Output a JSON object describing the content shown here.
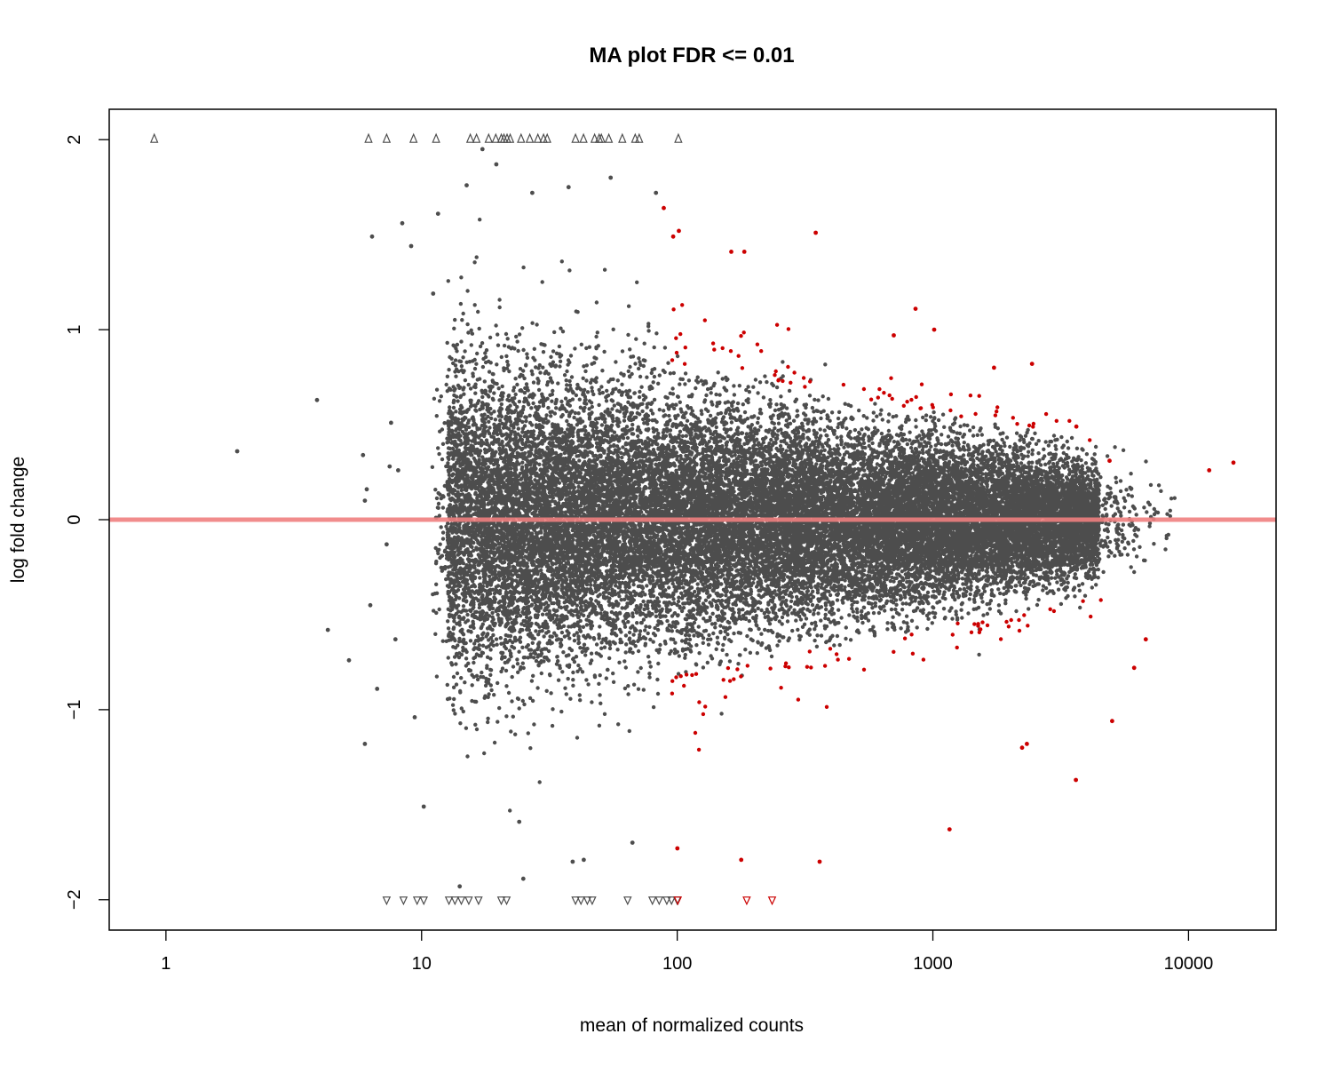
{
  "chart_data": {
    "type": "scatter",
    "title": "MA plot FDR <= 0.01",
    "xlabel": "mean of normalized counts",
    "ylabel": "log fold change",
    "x_scale": "log",
    "xlim": [
      0.6,
      22000
    ],
    "ylim": [
      -2.16,
      2.16
    ],
    "x_ticks": [
      1,
      10,
      100,
      1000,
      10000
    ],
    "x_tick_labels": [
      "1",
      "10",
      "100",
      "1000",
      "10000"
    ],
    "y_ticks": [
      -2,
      -1,
      0,
      1,
      2
    ],
    "y_tick_labels": [
      "−2",
      "−1",
      "0",
      "1",
      "2"
    ],
    "reference_line": {
      "y": 0
    },
    "grid": false,
    "legend": "none",
    "colors": {
      "not_significant": "#4d4d4d",
      "significant": "#cc0000",
      "reference_line": "#f08080",
      "frame": "#000000"
    },
    "clipped_markers": {
      "top_y": 2,
      "bottom_y": -2,
      "top_not_significant_x": [
        0.9,
        6.2,
        7.3,
        9.3,
        11.4,
        15.5,
        16.4,
        18.3,
        19.5,
        20.5,
        21,
        21.6,
        22.2,
        24.5,
        26.5,
        28.5,
        30,
        31,
        40,
        43,
        47.5,
        49.5,
        50.5,
        54,
        61,
        68.5,
        71,
        101
      ],
      "bottom_not_significant_x": [
        7.3,
        8.5,
        9.6,
        10.2,
        12.8,
        13.5,
        14.3,
        15.3,
        16.7,
        20.5,
        21.5,
        40,
        42,
        44.5,
        46.5,
        64,
        80,
        85,
        91,
        95,
        100
      ],
      "bottom_significant_x": [
        100.5,
        187,
        235
      ]
    },
    "series": [
      {
        "name": "",
        "color": "#4d4d4d",
        "points": [
          [
            3.9,
            0.63
          ],
          [
            1.9,
            0.36
          ],
          [
            4.3,
            -0.58
          ],
          [
            5.2,
            -0.74
          ],
          [
            6.0,
            -1.18
          ],
          [
            6.1,
            0.16
          ],
          [
            6.0,
            0.1
          ],
          [
            5.9,
            0.34
          ],
          [
            6.3,
            -0.45
          ],
          [
            6.4,
            1.49
          ],
          [
            6.7,
            -0.89
          ],
          [
            7.3,
            -0.13
          ],
          [
            7.5,
            0.28
          ],
          [
            7.6,
            0.51
          ],
          [
            7.9,
            -0.63
          ],
          [
            8.1,
            0.26
          ],
          [
            8.4,
            1.56
          ],
          [
            9.1,
            1.44
          ],
          [
            9.4,
            -1.04
          ],
          [
            10.2,
            -1.51
          ],
          [
            11.1,
            1.19
          ],
          [
            11.6,
            1.61
          ],
          [
            15.0,
            1.76
          ],
          [
            17.3,
            1.95
          ],
          [
            19.6,
            1.87
          ],
          [
            27.1,
            1.72
          ],
          [
            37.6,
            1.75
          ],
          [
            54.9,
            1.8
          ],
          [
            82.6,
            1.72
          ],
          [
            24.1,
            -1.59
          ],
          [
            39.0,
            -1.8
          ],
          [
            14.1,
            -1.93
          ],
          [
            25.0,
            -1.89
          ],
          [
            43.1,
            -1.79
          ],
          [
            66.8,
            -1.7
          ]
        ]
      },
      {
        "name": "",
        "color": "#cc0000",
        "points": [
          [
            88.6,
            1.64
          ],
          [
            96.4,
            1.49
          ],
          [
            101.5,
            1.52
          ],
          [
            162.7,
            1.41
          ],
          [
            183.0,
            1.41
          ],
          [
            348.2,
            1.51
          ],
          [
            703.0,
            0.97
          ],
          [
            855.6,
            1.11
          ],
          [
            1012,
            1.0
          ],
          [
            1734,
            0.8
          ],
          [
            2442,
            0.82
          ],
          [
            3642,
            0.49
          ],
          [
            4911,
            0.31
          ],
          [
            14990,
            0.3
          ],
          [
            12050,
            0.26
          ],
          [
            3625,
            -1.37
          ],
          [
            2332,
            -1.18
          ],
          [
            2233,
            -1.2
          ],
          [
            1162,
            -1.63
          ],
          [
            360.7,
            -1.8
          ],
          [
            177.9,
            -1.79
          ],
          [
            100.1,
            -1.73
          ],
          [
            5025,
            -1.06
          ],
          [
            6129,
            -0.78
          ],
          [
            6807,
            -0.63
          ]
        ]
      }
    ]
  }
}
